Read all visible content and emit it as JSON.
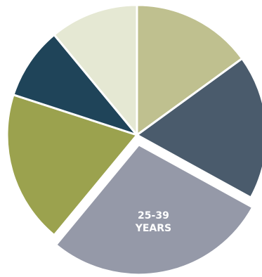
{
  "chart_data": {
    "type": "pie",
    "categories": [
      null,
      null,
      "25-39 YEARS",
      null,
      null,
      null
    ],
    "values": [
      15,
      18,
      28,
      19,
      9,
      11
    ],
    "colors": [
      "#bfc08f",
      "#4a5b6c",
      "#9599a8",
      "#9ba24e",
      "#1f4459",
      "#e5e8d3"
    ]
  }
}
